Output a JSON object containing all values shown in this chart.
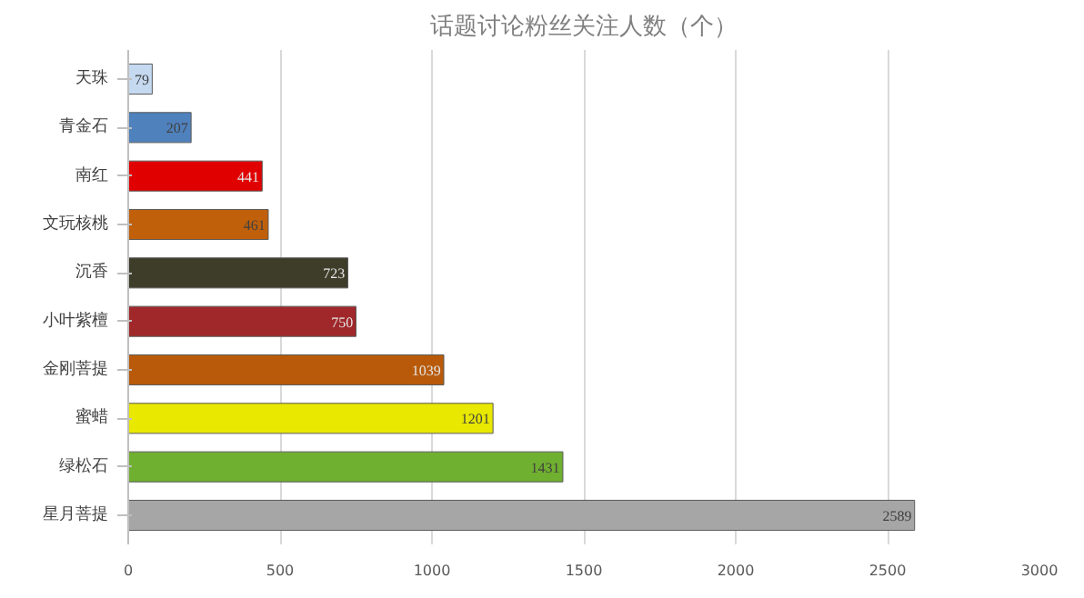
{
  "chart_data": {
    "type": "bar",
    "orientation": "horizontal",
    "title": "话题讨论粉丝关注人数（个）",
    "categories": [
      "天珠",
      "青金石",
      "南红",
      "文玩核桃",
      "沉香",
      "小叶紫檀",
      "金刚菩提",
      "蜜蜡",
      "绿松石",
      "星月菩提"
    ],
    "values": [
      79,
      207,
      441,
      461,
      723,
      750,
      1039,
      1201,
      1431,
      2589
    ],
    "colors": [
      "#c5d9f1",
      "#4f81bd",
      "#e00000",
      "#c0600a",
      "#3d3d2a",
      "#a0282a",
      "#b85a0a",
      "#e8e800",
      "#70b030",
      "#a6a6a6"
    ],
    "xlim": [
      0,
      3000
    ],
    "xticks": [
      0,
      500,
      1000,
      1500,
      2000,
      2500,
      3000
    ],
    "grid": "x",
    "data_labels": true
  }
}
